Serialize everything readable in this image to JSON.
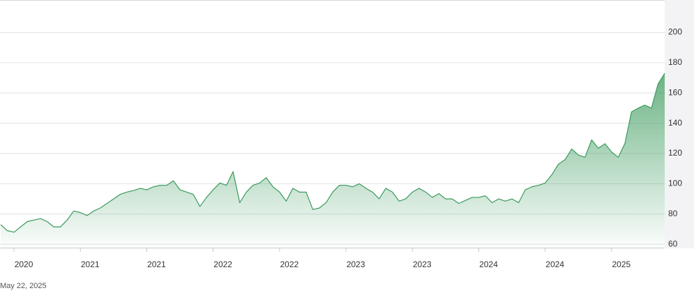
{
  "chart_data": {
    "type": "area",
    "date_label": "May 22, 2025",
    "categories": [
      null,
      null,
      "2020",
      null,
      null,
      null,
      null,
      null,
      null,
      null,
      null,
      null,
      "2021",
      null,
      null,
      null,
      null,
      null,
      null,
      null,
      null,
      null,
      "2021",
      null,
      null,
      null,
      null,
      null,
      null,
      null,
      null,
      null,
      "2022",
      null,
      null,
      null,
      null,
      null,
      null,
      null,
      null,
      null,
      "2022",
      null,
      null,
      null,
      null,
      null,
      null,
      null,
      null,
      null,
      "2023",
      null,
      null,
      null,
      null,
      null,
      null,
      null,
      null,
      null,
      "2023",
      null,
      null,
      null,
      null,
      null,
      null,
      null,
      null,
      null,
      "2024",
      null,
      null,
      null,
      null,
      null,
      null,
      null,
      null,
      null,
      "2024",
      null,
      null,
      null,
      null,
      null,
      null,
      null,
      null,
      null,
      "2025",
      null,
      null,
      null,
      null,
      null,
      null,
      null,
      null
    ],
    "values": [
      73,
      69,
      68,
      71.5,
      75,
      76,
      77,
      75,
      71.5,
      71.5,
      76,
      82,
      81,
      79,
      82,
      84,
      87,
      90,
      93,
      94.5,
      95.5,
      97,
      96,
      98,
      99,
      99,
      102,
      96,
      94.5,
      93,
      85,
      91,
      96,
      100.5,
      99,
      108,
      87.5,
      94.5,
      99,
      100.5,
      104,
      98,
      94.5,
      88.5,
      97,
      94.5,
      94.5,
      83,
      84,
      87.5,
      94.5,
      99,
      99,
      98,
      100,
      97,
      94.5,
      90,
      97,
      94.5,
      88.5,
      90,
      94.5,
      97,
      94.5,
      91,
      93.5,
      90,
      90,
      87,
      89,
      91,
      91,
      92,
      87.5,
      90,
      88.5,
      90,
      87.5,
      96,
      98,
      99,
      100.5,
      106,
      113,
      116,
      123,
      119,
      117.5,
      129,
      123.5,
      126.5,
      121,
      117.5,
      126.5,
      147.5,
      150,
      152,
      150,
      166,
      173
    ],
    "color": "#3a9a5c",
    "ylim": [
      58,
      221
    ],
    "yticks": [
      60,
      80,
      100,
      120,
      140,
      160,
      180,
      200
    ],
    "grid": true
  }
}
